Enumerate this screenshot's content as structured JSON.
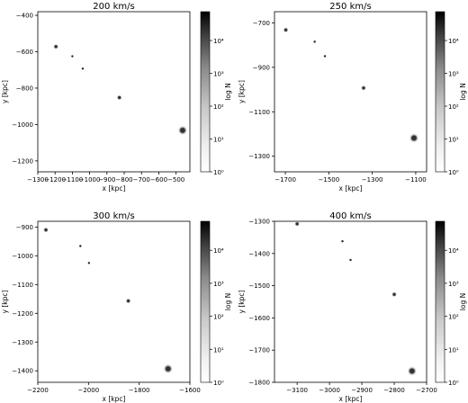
{
  "chart_data": [
    {
      "type": "scatter",
      "title": "200 km/s",
      "xlabel": "x [kpc]",
      "ylabel": "y [kpc]",
      "xlim": [
        -1300,
        -420
      ],
      "ylim": [
        -1260,
        -380
      ],
      "xticks": [
        -1300,
        -1200,
        -1100,
        -1000,
        -900,
        -800,
        -700,
        -600,
        -500
      ],
      "yticks": [
        -400,
        -600,
        -800,
        -1000,
        -1200
      ],
      "points": [
        {
          "x": -1195,
          "y": -572,
          "log_n": 2.2,
          "size": "small"
        },
        {
          "x": -1100,
          "y": -625,
          "log_n": 2.8,
          "size": "tiny"
        },
        {
          "x": -1040,
          "y": -693,
          "log_n": 3.0,
          "size": "tiny"
        },
        {
          "x": -828,
          "y": -852,
          "log_n": 2.0,
          "size": "small"
        },
        {
          "x": -462,
          "y": -1032,
          "log_n": 2.5,
          "size": "medium"
        }
      ],
      "colorbar": {
        "label": "log N",
        "ticks": [
          "10⁰",
          "10¹",
          "10²",
          "10³",
          "10⁴"
        ]
      }
    },
    {
      "type": "scatter",
      "title": "250 km/s",
      "xlabel": "x [kpc]",
      "ylabel": "y [kpc]",
      "xlim": [
        -1750,
        -1050
      ],
      "ylim": [
        -1370,
        -650
      ],
      "xticks": [
        -1700,
        -1500,
        -1300,
        -1100
      ],
      "yticks": [
        -700,
        -900,
        -1100,
        -1300
      ],
      "points": [
        {
          "x": -1698,
          "y": -732,
          "log_n": 2.2,
          "size": "small"
        },
        {
          "x": -1565,
          "y": -785,
          "log_n": 2.8,
          "size": "tiny"
        },
        {
          "x": -1518,
          "y": -850,
          "log_n": 3.0,
          "size": "tiny"
        },
        {
          "x": -1340,
          "y": -993,
          "log_n": 2.0,
          "size": "small"
        },
        {
          "x": -1108,
          "y": -1218,
          "log_n": 2.5,
          "size": "medium"
        }
      ],
      "colorbar": {
        "label": "log N",
        "ticks": [
          "10⁰",
          "10¹",
          "10²",
          "10³",
          "10⁴"
        ]
      }
    },
    {
      "type": "scatter",
      "title": "300 km/s",
      "xlabel": "x [kpc]",
      "ylabel": "y [kpc]",
      "xlim": [
        -2200,
        -1600
      ],
      "ylim": [
        -1440,
        -880
      ],
      "xticks": [
        -2200,
        -2000,
        -1800,
        -1600
      ],
      "yticks": [
        -900,
        -1000,
        -1100,
        -1200,
        -1300,
        -1400
      ],
      "points": [
        {
          "x": -2168,
          "y": -910,
          "log_n": 2.2,
          "size": "small"
        },
        {
          "x": -2032,
          "y": -966,
          "log_n": 2.8,
          "size": "tiny"
        },
        {
          "x": -1998,
          "y": -1025,
          "log_n": 3.0,
          "size": "tiny"
        },
        {
          "x": -1843,
          "y": -1157,
          "log_n": 2.0,
          "size": "small"
        },
        {
          "x": -1686,
          "y": -1393,
          "log_n": 2.5,
          "size": "medium"
        }
      ],
      "colorbar": {
        "label": "log N",
        "ticks": [
          "10⁰",
          "10¹",
          "10²",
          "10³",
          "10⁴"
        ]
      }
    },
    {
      "type": "scatter",
      "title": "400 km/s",
      "xlabel": "x [kpc]",
      "ylabel": "y [kpc]",
      "xlim": [
        -3170,
        -2700
      ],
      "ylim": [
        -1800,
        -1300
      ],
      "xticks": [
        -3100,
        -3000,
        -2900,
        -2800,
        -2700
      ],
      "yticks": [
        -1300,
        -1400,
        -1500,
        -1600,
        -1700,
        -1800
      ],
      "points": [
        {
          "x": -3100,
          "y": -1308,
          "log_n": 2.2,
          "size": "small"
        },
        {
          "x": -2960,
          "y": -1362,
          "log_n": 2.8,
          "size": "tiny"
        },
        {
          "x": -2935,
          "y": -1420,
          "log_n": 3.0,
          "size": "tiny"
        },
        {
          "x": -2800,
          "y": -1527,
          "log_n": 2.0,
          "size": "small"
        },
        {
          "x": -2745,
          "y": -1765,
          "log_n": 2.5,
          "size": "medium"
        }
      ],
      "colorbar": {
        "label": "log N",
        "ticks": [
          "10⁰",
          "10¹",
          "10²",
          "10³",
          "10⁴"
        ]
      }
    }
  ]
}
